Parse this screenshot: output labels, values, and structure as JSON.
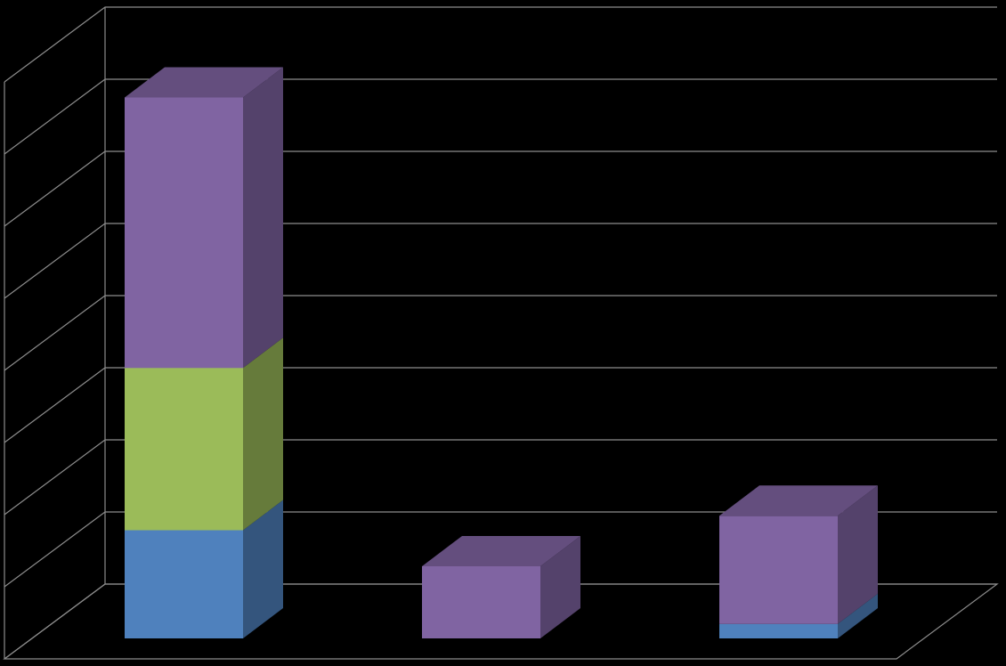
{
  "chart_data": {
    "type": "bar3d_stacked",
    "categories": [
      null,
      null,
      null
    ],
    "series": [
      {
        "color": "#4f81bd",
        "values": [
          1.5,
          0,
          0.2
        ]
      },
      {
        "color": "#9bbb59",
        "values": [
          2.25,
          0,
          0
        ]
      },
      {
        "color": "#8064a2",
        "values": [
          3.75,
          1.0,
          1.5
        ]
      }
    ],
    "ylim": [
      0,
      8
    ],
    "yticks": [
      0,
      1,
      2,
      3,
      4,
      5,
      6,
      7,
      8
    ],
    "grid": true,
    "background": "#000000"
  }
}
